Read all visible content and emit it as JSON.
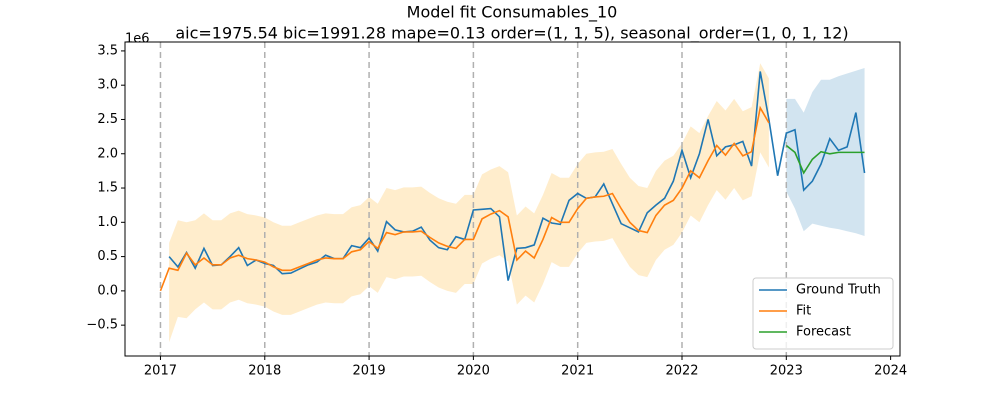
{
  "chart_data": {
    "type": "line",
    "title": "Model fit Consumables_10",
    "subtitle": "aic=1975.54 bic=1991.28 mape=0.13 order=(1, 1, 5), seasonal_order=(1, 0, 1, 12)",
    "y_offset_label": "1e6",
    "legend": "lower right",
    "xlim": [
      2016.66,
      2024.09
    ],
    "ylim": [
      -0.95,
      3.63
    ],
    "xticks": [
      2017,
      2018,
      2019,
      2020,
      2021,
      2022,
      2023,
      2024
    ],
    "yticks": [
      {
        "value": -0.5,
        "label": "−0.5"
      },
      {
        "value": 0,
        "label": "0.0"
      },
      0.5,
      {
        "value": 1,
        "label": "1.0"
      },
      1.5,
      {
        "value": 2,
        "label": "2.0"
      },
      2.5,
      {
        "value": 3,
        "label": "3.0"
      },
      3.5
    ],
    "vlines": [
      2017,
      2018,
      2019,
      2020,
      2021,
      2022,
      2023
    ],
    "x": [
      2017,
      2017.083,
      2017.167,
      2017.25,
      2017.333,
      2017.417,
      2017.5,
      2017.583,
      2017.667,
      2017.75,
      2017.833,
      2017.917,
      2018,
      2018.083,
      2018.167,
      2018.25,
      2018.333,
      2018.417,
      2018.5,
      2018.583,
      2018.667,
      2018.75,
      2018.833,
      2018.917,
      2019,
      2019.083,
      2019.167,
      2019.25,
      2019.333,
      2019.417,
      2019.5,
      2019.583,
      2019.667,
      2019.75,
      2019.833,
      2019.917,
      2020,
      2020.083,
      2020.167,
      2020.25,
      2020.333,
      2020.417,
      2020.5,
      2020.583,
      2020.667,
      2020.75,
      2020.833,
      2020.917,
      2021,
      2021.083,
      2021.167,
      2021.25,
      2021.333,
      2021.417,
      2021.5,
      2021.583,
      2021.667,
      2021.75,
      2021.833,
      2021.917,
      2022,
      2022.083,
      2022.167,
      2022.25,
      2022.333,
      2022.417,
      2022.5,
      2022.583,
      2022.667,
      2022.75,
      2022.833,
      2022.917,
      2023,
      2023.083,
      2023.167,
      2023.25,
      2023.333,
      2023.417,
      2023.5,
      2023.583,
      2023.667,
      2023.75
    ],
    "series": [
      {
        "name": "Ground Truth",
        "color": "#1f77b4",
        "values": [
          null,
          0.5,
          0.35,
          0.56,
          0.33,
          0.62,
          0.37,
          0.38,
          0.5,
          0.63,
          0.37,
          0.45,
          0.4,
          0.37,
          0.25,
          0.26,
          0.32,
          0.38,
          0.42,
          0.52,
          0.47,
          0.47,
          0.66,
          0.63,
          0.77,
          0.58,
          1.01,
          0.89,
          0.86,
          0.87,
          0.93,
          0.74,
          0.63,
          0.6,
          0.79,
          0.75,
          1.18,
          1.19,
          1.2,
          1.08,
          0.15,
          0.62,
          0.63,
          0.67,
          1.06,
          0.99,
          0.97,
          1.32,
          1.42,
          1.35,
          1.37,
          1.56,
          1.27,
          0.98,
          0.92,
          0.86,
          1.14,
          1.25,
          1.35,
          1.6,
          2.05,
          1.65,
          2.0,
          2.5,
          1.97,
          2.1,
          2.13,
          2.18,
          1.82,
          3.2,
          2.5,
          1.68,
          2.3,
          2.35,
          1.47,
          1.6,
          1.85,
          2.22,
          2.05,
          2.1,
          2.6,
          1.72
        ]
      },
      {
        "name": "Fit",
        "color": "#ff7f0e",
        "band_color": "#ffa500",
        "values": [
          0.0,
          0.33,
          0.3,
          0.55,
          0.38,
          0.48,
          0.38,
          0.38,
          0.48,
          0.52,
          0.47,
          0.45,
          0.42,
          0.35,
          0.3,
          0.3,
          0.35,
          0.4,
          0.45,
          0.48,
          0.47,
          0.47,
          0.57,
          0.6,
          0.72,
          0.62,
          0.85,
          0.82,
          0.86,
          0.86,
          0.87,
          0.78,
          0.7,
          0.65,
          0.62,
          0.75,
          0.75,
          1.05,
          1.12,
          1.17,
          1.08,
          0.45,
          0.58,
          0.48,
          0.75,
          1.07,
          1.0,
          1.0,
          1.2,
          1.35,
          1.37,
          1.38,
          1.42,
          1.2,
          1.0,
          0.88,
          0.85,
          1.1,
          1.25,
          1.32,
          1.5,
          1.75,
          1.65,
          1.9,
          2.12,
          1.98,
          2.15,
          1.97,
          2.03,
          2.67,
          2.45,
          null,
          null,
          null,
          null,
          null,
          null,
          null,
          null,
          null,
          null,
          null
        ],
        "band_lower": [
          null,
          -0.75,
          -0.38,
          -0.4,
          -0.27,
          -0.17,
          -0.27,
          -0.27,
          -0.17,
          -0.13,
          -0.18,
          -0.2,
          -0.23,
          -0.3,
          -0.35,
          -0.35,
          -0.3,
          -0.25,
          -0.2,
          -0.17,
          -0.18,
          -0.18,
          -0.08,
          -0.05,
          0.07,
          -0.03,
          0.2,
          0.17,
          0.21,
          0.21,
          0.22,
          0.13,
          0.05,
          0.0,
          -0.03,
          0.1,
          0.1,
          0.4,
          0.47,
          0.52,
          0.43,
          -0.2,
          -0.07,
          -0.17,
          0.1,
          0.42,
          0.35,
          0.35,
          0.55,
          0.7,
          0.72,
          0.73,
          0.77,
          0.55,
          0.35,
          0.23,
          0.2,
          0.45,
          0.6,
          0.67,
          0.85,
          1.1,
          1.0,
          1.25,
          1.47,
          1.33,
          1.5,
          1.32,
          1.38,
          2.02,
          1.8,
          null,
          null,
          null,
          null,
          null,
          null,
          null,
          null,
          null,
          null,
          null
        ],
        "band_upper": [
          null,
          0.7,
          1.03,
          1.0,
          1.03,
          1.13,
          1.03,
          1.03,
          1.13,
          1.17,
          1.12,
          1.1,
          1.07,
          1.0,
          0.95,
          0.95,
          1.0,
          1.05,
          1.1,
          1.13,
          1.12,
          1.12,
          1.22,
          1.25,
          1.37,
          1.27,
          1.5,
          1.47,
          1.51,
          1.51,
          1.52,
          1.43,
          1.35,
          1.3,
          1.27,
          1.4,
          1.4,
          1.7,
          1.77,
          1.82,
          1.73,
          1.1,
          1.23,
          1.13,
          1.4,
          1.72,
          1.65,
          1.65,
          1.85,
          2.0,
          2.02,
          2.03,
          2.07,
          1.85,
          1.65,
          1.53,
          1.5,
          1.75,
          1.9,
          1.97,
          2.15,
          2.4,
          2.3,
          2.55,
          2.77,
          2.63,
          2.8,
          2.62,
          2.68,
          3.32,
          3.1,
          null,
          null,
          null,
          null,
          null,
          null,
          null,
          null,
          null,
          null,
          null
        ]
      },
      {
        "name": "Forecast",
        "color": "#2ca02c",
        "band_color": "#1f77b4",
        "values": [
          null,
          null,
          null,
          null,
          null,
          null,
          null,
          null,
          null,
          null,
          null,
          null,
          null,
          null,
          null,
          null,
          null,
          null,
          null,
          null,
          null,
          null,
          null,
          null,
          null,
          null,
          null,
          null,
          null,
          null,
          null,
          null,
          null,
          null,
          null,
          null,
          null,
          null,
          null,
          null,
          null,
          null,
          null,
          null,
          null,
          null,
          null,
          null,
          null,
          null,
          null,
          null,
          null,
          null,
          null,
          null,
          null,
          null,
          null,
          null,
          null,
          null,
          null,
          null,
          null,
          null,
          null,
          null,
          null,
          null,
          null,
          null,
          2.12,
          2.02,
          1.72,
          1.92,
          2.03,
          2.0,
          2.02,
          2.02,
          2.02,
          2.02
        ],
        "band_lower": [
          null,
          null,
          null,
          null,
          null,
          null,
          null,
          null,
          null,
          null,
          null,
          null,
          null,
          null,
          null,
          null,
          null,
          null,
          null,
          null,
          null,
          null,
          null,
          null,
          null,
          null,
          null,
          null,
          null,
          null,
          null,
          null,
          null,
          null,
          null,
          null,
          null,
          null,
          null,
          null,
          null,
          null,
          null,
          null,
          null,
          null,
          null,
          null,
          null,
          null,
          null,
          null,
          null,
          null,
          null,
          null,
          null,
          null,
          null,
          null,
          null,
          null,
          null,
          null,
          null,
          null,
          null,
          null,
          null,
          null,
          null,
          null,
          1.45,
          1.2,
          0.87,
          0.98,
          0.95,
          0.92,
          0.9,
          0.87,
          0.84,
          0.8
        ],
        "band_upper": [
          null,
          null,
          null,
          null,
          null,
          null,
          null,
          null,
          null,
          null,
          null,
          null,
          null,
          null,
          null,
          null,
          null,
          null,
          null,
          null,
          null,
          null,
          null,
          null,
          null,
          null,
          null,
          null,
          null,
          null,
          null,
          null,
          null,
          null,
          null,
          null,
          null,
          null,
          null,
          null,
          null,
          null,
          null,
          null,
          null,
          null,
          null,
          null,
          null,
          null,
          null,
          null,
          null,
          null,
          null,
          null,
          null,
          null,
          null,
          null,
          null,
          null,
          null,
          null,
          null,
          null,
          null,
          null,
          null,
          null,
          null,
          null,
          2.8,
          2.8,
          2.6,
          2.9,
          3.08,
          3.08,
          3.13,
          3.17,
          3.21,
          3.25
        ]
      }
    ]
  }
}
